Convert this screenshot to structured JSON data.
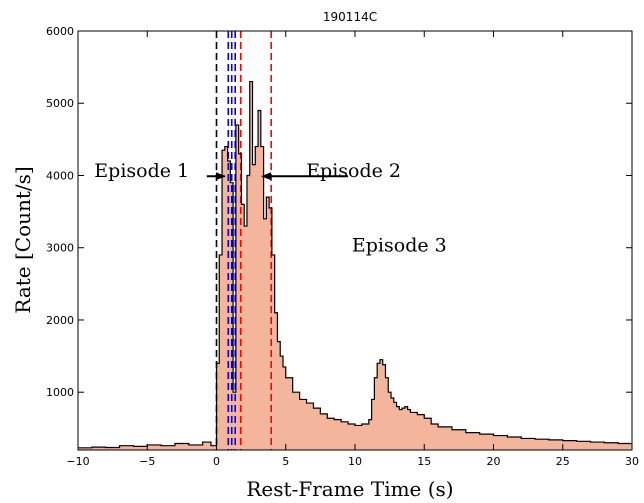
{
  "chart_data": {
    "type": "area",
    "title": "190114C",
    "xlabel": "Rest-Frame Time (s)",
    "ylabel": "Rate [Count/s]",
    "xlim": [
      -10,
      30
    ],
    "ylim": [
      200,
      6000
    ],
    "xticks": [
      "−10",
      "−5",
      "0",
      "5",
      "10",
      "15",
      "20",
      "25",
      "30"
    ],
    "yticks": [
      "1000",
      "2000",
      "3000",
      "4000",
      "5000",
      "6000"
    ],
    "grid": false,
    "series": [
      {
        "fill_color": "#f4b59d",
        "line_color": "#000000",
        "x": [
          -10,
          -9,
          -8,
          -7,
          -6,
          -5,
          -4,
          -3,
          -2,
          -1,
          -0.4,
          0,
          0.2,
          0.4,
          0.6,
          0.8,
          1.0,
          1.2,
          1.4,
          1.6,
          1.8,
          2.0,
          2.2,
          2.4,
          2.6,
          2.8,
          3.0,
          3.2,
          3.4,
          3.6,
          3.8,
          4.0,
          4.2,
          4.4,
          4.6,
          4.8,
          5.0,
          5.5,
          6,
          6.5,
          7,
          7.5,
          8,
          8.5,
          9,
          9.5,
          10,
          10.5,
          11,
          11.2,
          11.4,
          11.6,
          11.8,
          12.0,
          12.2,
          12.4,
          12.6,
          12.8,
          13.0,
          13.2,
          13.4,
          13.6,
          13.8,
          14,
          14.5,
          15,
          15.5,
          16,
          17,
          18,
          19,
          20,
          21,
          22,
          23,
          24,
          25,
          26,
          27,
          28,
          29,
          30
        ],
        "y": [
          230,
          240,
          235,
          260,
          250,
          270,
          260,
          290,
          270,
          310,
          260,
          1400,
          2900,
          4350,
          4400,
          4200,
          3900,
          1000,
          4700,
          4300,
          3600,
          3300,
          4000,
          5300,
          4150,
          4400,
          4900,
          4400,
          3400,
          3700,
          3550,
          2900,
          2100,
          1700,
          1500,
          1350,
          1200,
          1000,
          900,
          850,
          780,
          700,
          640,
          620,
          590,
          560,
          540,
          560,
          620,
          900,
          1200,
          1400,
          1450,
          1380,
          1200,
          1000,
          920,
          860,
          800,
          760,
          780,
          800,
          760,
          720,
          690,
          640,
          560,
          520,
          480,
          440,
          420,
          400,
          380,
          360,
          350,
          340,
          330,
          320,
          310,
          300,
          290,
          270
        ]
      }
    ],
    "vertical_lines": [
      {
        "x": 0.0,
        "color": "#000000"
      },
      {
        "x": 0.85,
        "color": "#0000ff"
      },
      {
        "x": 1.1,
        "color": "#0000ff"
      },
      {
        "x": 1.35,
        "color": "#0000ff"
      },
      {
        "x": 1.75,
        "color": "#ff0000"
      },
      {
        "x": 3.95,
        "color": "#ff0000"
      }
    ],
    "annotations": [
      {
        "text": "Episode 1",
        "tx": -5.4,
        "ty": 3980,
        "arrow_from_x": -0.7,
        "arrow_to_x": 0.6,
        "arrow_y": 3990
      },
      {
        "text": "Episode 2",
        "tx": 9.9,
        "ty": 3980,
        "arrow_from_x": 9.5,
        "arrow_to_x": 3.3,
        "arrow_y": 3990
      },
      {
        "text": "Episode 3",
        "tx": 13.2,
        "ty": 2950
      }
    ]
  }
}
